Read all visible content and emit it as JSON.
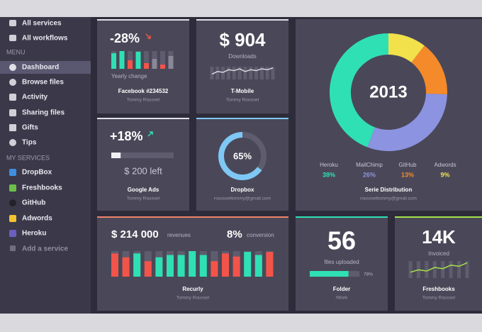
{
  "sidebar": {
    "top": [
      "All services",
      "All workflows"
    ],
    "menu_heading": "MENU",
    "menu": [
      "Dashboard",
      "Browse files",
      "Activity",
      "Sharing files",
      "Gifts",
      "Tips"
    ],
    "services_heading": "MY SERVICES",
    "services": [
      "DropBox",
      "Freshbooks",
      "GitHub",
      "Adwords",
      "Heroku"
    ],
    "add_service": "Add a service"
  },
  "cards": {
    "facebook": {
      "value": "-28%",
      "caption": "Yearly change",
      "title": "Facebook #234532",
      "subtitle": "Tommy Roussel",
      "bars": [
        22,
        25,
        12,
        24,
        8,
        14,
        6,
        18
      ],
      "bar_colors": [
        "#2fe0b5",
        "#2fe0b5",
        "#f2544a",
        "#2fe0b5",
        "#f2544a",
        "#8a8898",
        "#f2544a",
        "#8a8898"
      ]
    },
    "tmobile": {
      "value": "$ 904",
      "caption": "Downloads",
      "line": [
        6,
        9,
        8,
        11,
        10,
        12,
        9,
        11,
        10,
        12,
        11,
        13
      ],
      "line_color": "#d8d8e0",
      "title": "T-Mobile",
      "subtitle": "Tommy Roussel"
    },
    "distribution": {
      "center": "2013",
      "segments": [
        {
          "name": "Heroku",
          "value": 38,
          "value_label": "38%",
          "color": "#2fe0b5"
        },
        {
          "name": "MailChimp",
          "value": 26,
          "value_label": "26%",
          "color": "#8c93e0"
        },
        {
          "name": "GitHub",
          "value": 13,
          "value_label": "13%",
          "color": "#f58a2a"
        },
        {
          "name": "Adwords",
          "value": 9,
          "value_label": "9%",
          "color": "#f2e14a"
        }
      ],
      "title": "Serie Distribution",
      "subtitle": "roussseltommy@gmail.com"
    },
    "google_ads": {
      "value": "+18%",
      "progress": 15,
      "amount": "$ 200 left",
      "title": "Google Ads",
      "subtitle": "Tommy Roussel"
    },
    "dropbox": {
      "value": 65,
      "value_label": "65%",
      "color": "#7ec8f5",
      "title": "Dropbox",
      "subtitle": "roussseltommy@gmail.com"
    },
    "recurly": {
      "revenue": "$ 214 000",
      "revenue_label": "revenues",
      "conversion": "8%",
      "conversion_label": "conversion",
      "bars": [
        30,
        25,
        30,
        20,
        25,
        28,
        28,
        33,
        28,
        20,
        30,
        26,
        32,
        28,
        32
      ],
      "bar_colors": [
        "#f2544a",
        "#f2544a",
        "#2fe0b5",
        "#f2544a",
        "#2fe0b5",
        "#2fe0b5",
        "#2fe0b5",
        "#2fe0b5",
        "#2fe0b5",
        "#f2544a",
        "#f2544a",
        "#f2544a",
        "#2fe0b5",
        "#2fe0b5",
        "#f2544a"
      ],
      "title": "Recurly",
      "subtitle": "Tommy Roussel"
    },
    "folder": {
      "value": "56",
      "caption": "files uploaded",
      "progress": 78,
      "progress_label": "78%",
      "color": "#2fe0b5",
      "title": "Folder",
      "subtitle": "/Work"
    },
    "freshbooks": {
      "value": "14K",
      "caption": "Invoiced",
      "line": [
        5,
        7,
        6,
        9,
        8,
        11,
        10,
        13
      ],
      "line_color": "#a6e24a",
      "title": "Freshbooks",
      "subtitle": "Tommy Roussel"
    }
  }
}
